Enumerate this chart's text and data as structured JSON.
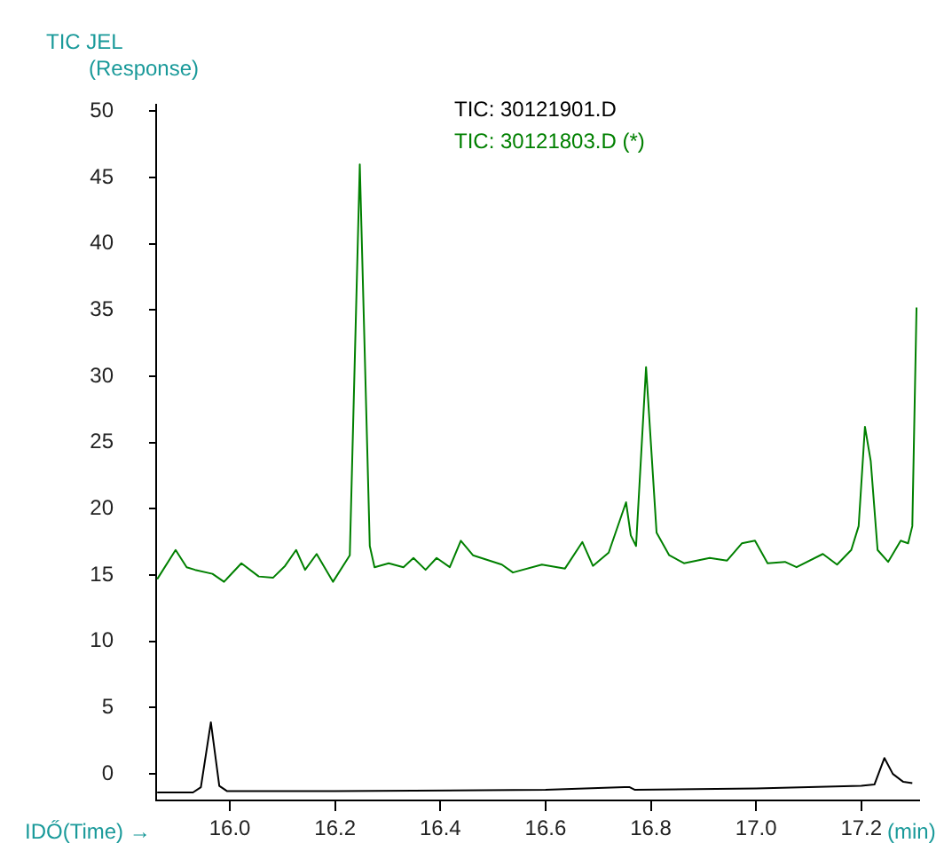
{
  "chart_data": {
    "type": "line",
    "ylabel": "TIC JEL\n(Response)",
    "xlabel": "IDŐ(Time) →",
    "annotations": [
      "(min)"
    ],
    "xlim": [
      15.86,
      17.31
    ],
    "xticks": [
      {
        "value": 16,
        "label": "16.0"
      },
      16.2,
      16.4,
      16.6,
      16.8,
      {
        "value": 17,
        "label": "17.0"
      },
      17.2
    ],
    "ylim": [
      -2,
      50.5
    ],
    "yticks": [
      0,
      5,
      10,
      15,
      20,
      25,
      30,
      35,
      40,
      45,
      50
    ],
    "grid": false,
    "legend": "top",
    "marker": "none",
    "line_style": "solid",
    "series": [
      {
        "name": "TIC: 30121901.D",
        "color": "#000000",
        "x": [
          15.862,
          15.93,
          15.945,
          15.964,
          15.98,
          15.995,
          16.2,
          16.6,
          16.75,
          16.76,
          16.77,
          17.0,
          17.2,
          17.225,
          17.244,
          17.26,
          17.28,
          17.297
        ],
        "values": [
          -1.4,
          -1.4,
          -1.0,
          3.9,
          -0.9,
          -1.3,
          -1.3,
          -1.2,
          -1.0,
          -1.0,
          -1.2,
          -1.1,
          -0.9,
          -0.8,
          1.2,
          0.0,
          -0.6,
          -0.7
        ]
      },
      {
        "name": "TIC: 30121803.D (*)",
        "color": "#008000",
        "x": [
          15.862,
          15.897,
          15.918,
          15.934,
          15.967,
          15.989,
          16.022,
          16.055,
          16.082,
          16.105,
          16.126,
          16.143,
          16.165,
          16.196,
          16.228,
          16.247,
          16.266,
          16.275,
          16.302,
          16.33,
          16.349,
          16.372,
          16.393,
          16.418,
          16.439,
          16.462,
          16.517,
          16.538,
          16.593,
          16.637,
          16.67,
          16.69,
          16.72,
          16.753,
          16.762,
          16.772,
          16.791,
          16.811,
          16.835,
          16.863,
          16.912,
          16.945,
          16.973,
          16.998,
          17.022,
          17.055,
          17.077,
          17.127,
          17.154,
          17.181,
          17.195,
          17.207,
          17.218,
          17.231,
          17.251,
          17.275,
          17.289,
          17.297,
          17.305
        ],
        "values": [
          14.7,
          16.9,
          15.6,
          15.4,
          15.1,
          14.5,
          15.9,
          14.9,
          14.8,
          15.7,
          16.9,
          15.4,
          16.6,
          14.5,
          16.5,
          46.0,
          17.2,
          15.6,
          15.9,
          15.6,
          16.3,
          15.4,
          16.3,
          15.6,
          17.6,
          16.5,
          15.8,
          15.2,
          15.8,
          15.5,
          17.5,
          15.7,
          16.7,
          20.5,
          18.0,
          17.2,
          30.7,
          18.2,
          16.5,
          15.9,
          16.3,
          16.1,
          17.4,
          17.6,
          15.9,
          16.0,
          15.6,
          16.6,
          15.8,
          16.9,
          18.7,
          26.2,
          23.6,
          16.9,
          16.0,
          17.6,
          17.4,
          18.7,
          35.2
        ]
      }
    ]
  }
}
